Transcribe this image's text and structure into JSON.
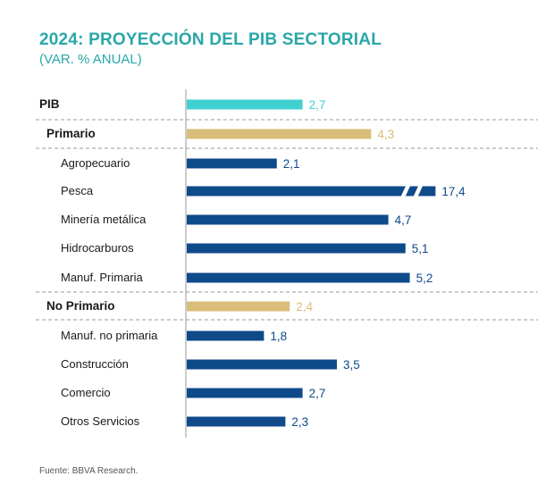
{
  "colors": {
    "title": "#2aa7a8",
    "pib": "#3fd0cf",
    "group": "#d9bd79",
    "sector": "#0f4a8b",
    "label_text": "#1a1a1a",
    "divider": "#9a9a9a"
  },
  "chart_data": {
    "type": "bar",
    "orientation": "horizontal",
    "title": "2024: PROYECCIÓN DEL PIB SECTORIAL",
    "subtitle": "(VAR. % ANUAL)",
    "categories": [
      "PIB",
      "Primario",
      "Agropecuario",
      "Pesca",
      "Minería metálica",
      "Hidrocarburos",
      "Manuf. Primaria",
      "No Primario",
      "Manuf. no primaria",
      "Construcción",
      "Comercio",
      "Otros Servicios"
    ],
    "values": [
      2.7,
      4.3,
      2.1,
      17.4,
      4.7,
      5.1,
      5.2,
      2.4,
      1.8,
      3.5,
      2.7,
      2.3
    ],
    "value_labels": [
      "2,7",
      "4,3",
      "2,1",
      "17,4",
      "4,7",
      "5,1",
      "5,2",
      "2,4",
      "1,8",
      "3,5",
      "2,7",
      "2,3"
    ],
    "levels": [
      "total",
      "group",
      "sector",
      "sector",
      "sector",
      "sector",
      "sector",
      "group",
      "sector",
      "sector",
      "sector",
      "sector"
    ],
    "axis_break": {
      "category": "Pesca",
      "display_value": 5.8
    },
    "xlim": [
      0,
      6
    ],
    "source": "Fuente: BBVA Research."
  }
}
